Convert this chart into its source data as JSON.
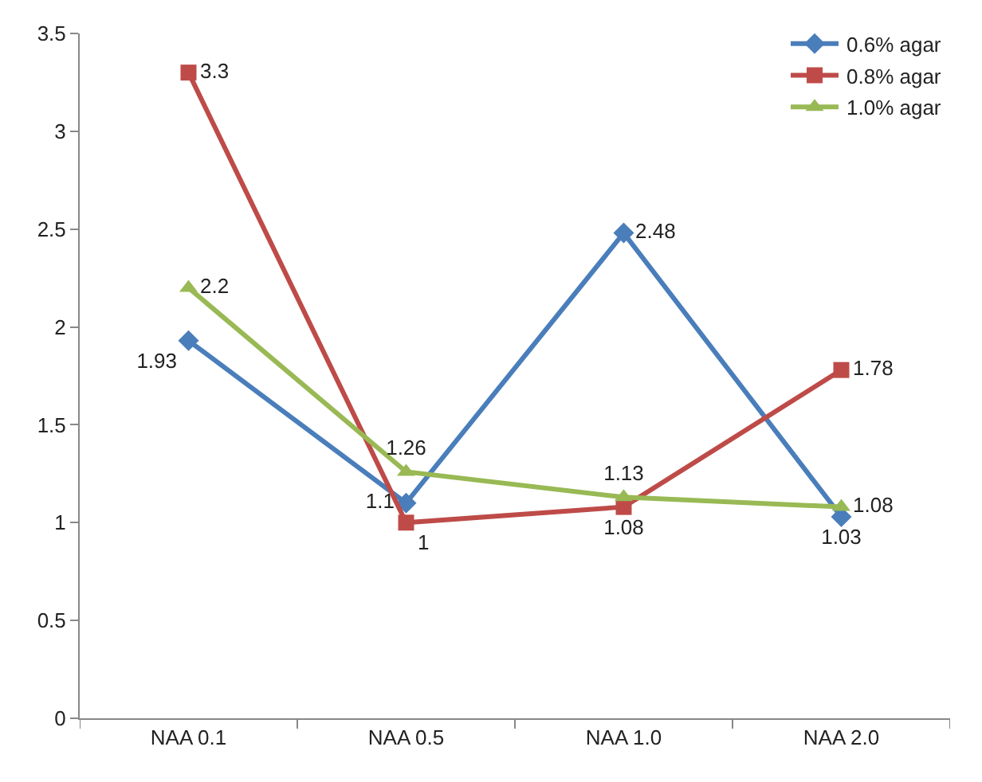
{
  "chart_data": {
    "type": "line",
    "categories": [
      "NAA 0.1",
      "NAA 0.5",
      "NAA 1.0",
      "NAA 2.0"
    ],
    "series": [
      {
        "name": "0.6% agar",
        "color": "#4a7ebb",
        "marker": "diamond",
        "values": [
          1.93,
          1.1,
          2.48,
          1.03
        ]
      },
      {
        "name": "0.8% agar",
        "color": "#be4b48",
        "marker": "square",
        "values": [
          3.3,
          1,
          1.08,
          1.78
        ]
      },
      {
        "name": "1.0% agar",
        "color": "#98b954",
        "marker": "triangle",
        "values": [
          2.2,
          1.26,
          1.13,
          1.08
        ]
      }
    ],
    "ylim": [
      0,
      3.5
    ],
    "yticks": [
      0,
      0.5,
      1,
      1.5,
      2,
      2.5,
      3,
      3.5
    ],
    "grid": false,
    "legend": "top right",
    "data_labels": true,
    "line_style": "solid"
  }
}
